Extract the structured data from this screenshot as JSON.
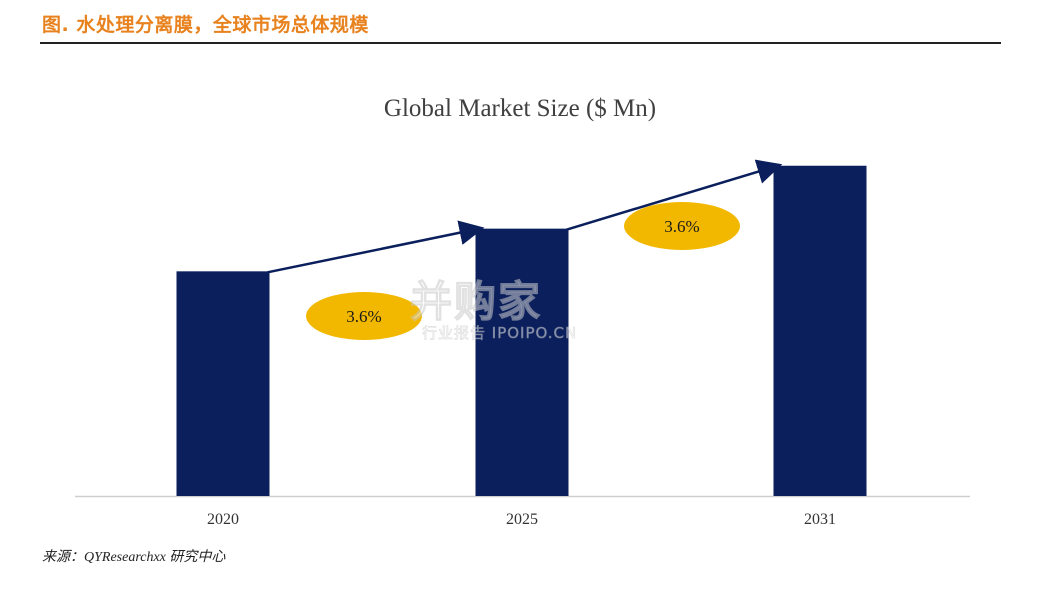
{
  "figure": {
    "title": "图. 水处理分离膜，全球市场总体规模",
    "source": "来源：QYResearchxx 研究中心"
  },
  "watermark": {
    "main": "并购家",
    "sub": "行业报告 IPOIPO.CN"
  },
  "colors": {
    "bar": "#0a1f5c",
    "bubble": "#f2b800",
    "title_accent": "#e8821e",
    "arrow": "#0a1f5c"
  },
  "chart_data": {
    "type": "bar",
    "title": "Global Market Size ($ Mn)",
    "categories": [
      "2020",
      "2025",
      "2031"
    ],
    "values": [
      100,
      119,
      147
    ],
    "ylim": [
      0,
      150
    ],
    "grid": false,
    "legend": "none",
    "annotations": [
      {
        "label": "3.6%",
        "from": "2020",
        "to": "2025"
      },
      {
        "label": "3.6%",
        "from": "2025",
        "to": "2031"
      }
    ]
  }
}
